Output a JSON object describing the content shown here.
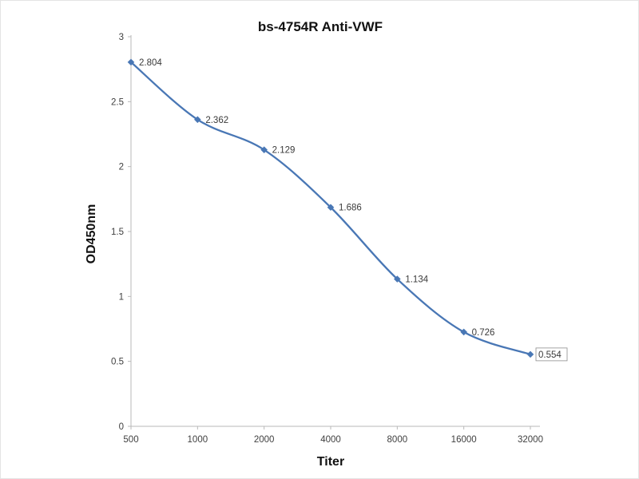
{
  "chart": {
    "title": "bs-4754R Anti-VWF",
    "ylabel": "OD450nm",
    "xlabel": "Titer"
  },
  "chart_data": {
    "type": "line",
    "title": "bs-4754R Anti-VWF",
    "xlabel": "Titer",
    "ylabel": "OD450nm",
    "categories": [
      "500",
      "1000",
      "2000",
      "4000",
      "8000",
      "16000",
      "32000"
    ],
    "values": [
      2.804,
      2.362,
      2.129,
      1.686,
      1.134,
      0.726,
      0.554
    ],
    "data_labels": [
      "2.804",
      "2.362",
      "2.129",
      "1.686",
      "1.134",
      "0.726",
      "0.554"
    ],
    "ylim": [
      0,
      3
    ],
    "yticks": [
      0,
      0.5,
      1,
      1.5,
      2,
      2.5,
      3
    ],
    "line_color": "#4977b5",
    "axis_color": "#b9b9b9",
    "marker": "diamond",
    "grid": false,
    "legend": "none",
    "last_label_boxed": true,
    "smooth": true
  }
}
